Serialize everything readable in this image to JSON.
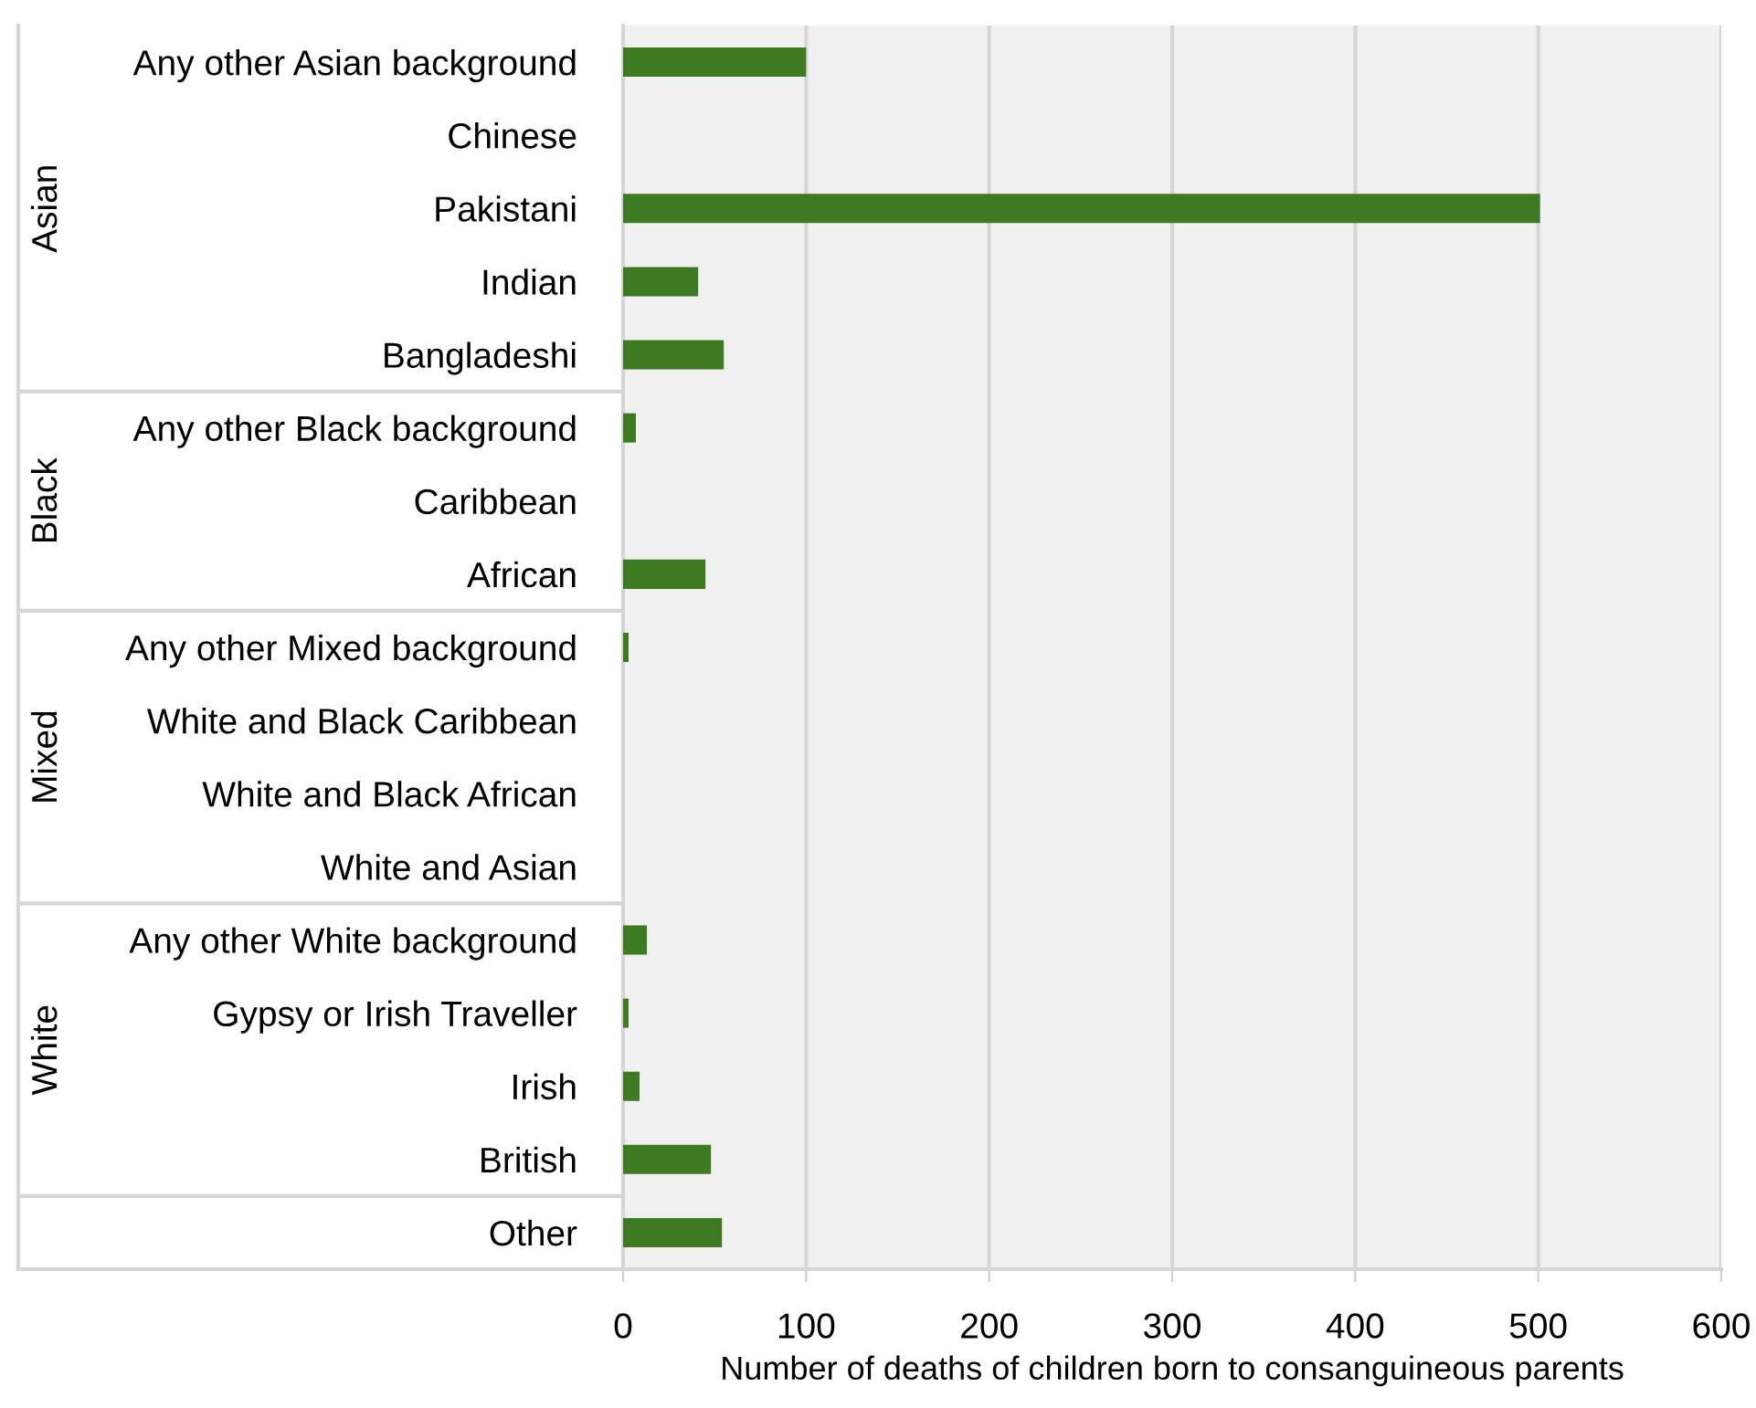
{
  "chart_data": {
    "type": "bar",
    "orientation": "horizontal",
    "categories": [
      "Any other Asian background",
      "Chinese",
      "Pakistani",
      "Indian",
      "Bangladeshi",
      "Any other Black background",
      "Caribbean",
      "African",
      "Any other Mixed background",
      "White and Black Caribbean",
      "White and Black African",
      "White and Asian",
      "Any other White background",
      "Gypsy or Irish Traveller",
      "Irish",
      "British",
      "Other"
    ],
    "values": [
      100,
      0,
      501,
      41,
      55,
      7,
      0,
      45,
      3,
      0,
      0,
      0,
      13,
      3,
      9,
      48,
      54
    ],
    "color": "#3d7a22",
    "xlabel": "Number of deaths of children born to consanguineous parents",
    "xlim": [
      0,
      600
    ],
    "xticks": [
      0,
      100,
      200,
      300,
      400,
      500,
      600
    ],
    "grid": "x",
    "annotations": [
      "Asian",
      "Black",
      "Mixed",
      "White"
    ]
  }
}
